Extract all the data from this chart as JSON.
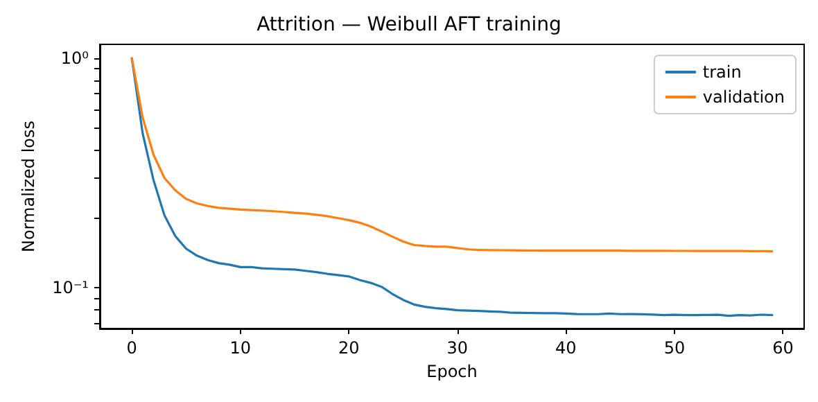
{
  "chart_data": {
    "type": "line",
    "title": "Attrition — Weibull AFT training",
    "xlabel": "Epoch",
    "ylabel": "Normalized loss",
    "x": [
      0,
      1,
      2,
      3,
      4,
      5,
      6,
      7,
      8,
      9,
      10,
      11,
      12,
      13,
      14,
      15,
      16,
      17,
      18,
      19,
      20,
      21,
      22,
      23,
      24,
      25,
      26,
      27,
      28,
      29,
      30,
      31,
      32,
      33,
      34,
      35,
      36,
      37,
      38,
      39,
      40,
      41,
      42,
      43,
      44,
      45,
      46,
      47,
      48,
      49,
      50,
      51,
      52,
      53,
      54,
      55,
      56,
      57,
      58,
      59
    ],
    "series": [
      {
        "name": "train",
        "color": "#1f77b4",
        "values": [
          1.0,
          0.47,
          0.294,
          0.207,
          0.168,
          0.148,
          0.138,
          0.132,
          0.128,
          0.126,
          0.123,
          0.123,
          0.1215,
          0.121,
          0.1205,
          0.12,
          0.1185,
          0.117,
          0.115,
          0.1135,
          0.112,
          0.108,
          0.105,
          0.101,
          0.094,
          0.0885,
          0.0845,
          0.0826,
          0.0815,
          0.0807,
          0.0798,
          0.0795,
          0.0792,
          0.0788,
          0.0785,
          0.0778,
          0.0777,
          0.0776,
          0.0775,
          0.0775,
          0.0772,
          0.0768,
          0.0767,
          0.0767,
          0.0772,
          0.0767,
          0.0768,
          0.0766,
          0.0764,
          0.076,
          0.0762,
          0.076,
          0.076,
          0.0761,
          0.0762,
          0.0755,
          0.076,
          0.0757,
          0.0763,
          0.076
        ]
      },
      {
        "name": "validation",
        "color": "#ff7f0e",
        "values": [
          1.0,
          0.551,
          0.38,
          0.301,
          0.266,
          0.244,
          0.233,
          0.227,
          0.223,
          0.221,
          0.219,
          0.218,
          0.217,
          0.2155,
          0.214,
          0.212,
          0.2105,
          0.208,
          0.205,
          0.201,
          0.197,
          0.192,
          0.185,
          0.176,
          0.167,
          0.159,
          0.1535,
          0.152,
          0.151,
          0.151,
          0.149,
          0.147,
          0.146,
          0.1458,
          0.1457,
          0.1455,
          0.1453,
          0.1452,
          0.145,
          0.145,
          0.145,
          0.145,
          0.145,
          0.145,
          0.145,
          0.145,
          0.1448,
          0.1448,
          0.1448,
          0.1448,
          0.1447,
          0.1447,
          0.1446,
          0.1446,
          0.1445,
          0.1445,
          0.1445,
          0.1444,
          0.1443,
          0.144
        ]
      }
    ],
    "log": "y",
    "xlim": [
      -2.95,
      61.95
    ],
    "ylim": [
      0.0664,
      1.15
    ],
    "xticks": [
      0,
      10,
      20,
      30,
      40,
      50,
      60
    ],
    "yticks": [
      {
        "value": 0.07,
        "label": null
      },
      {
        "value": 0.08,
        "label": null
      },
      {
        "value": 0.09,
        "label": null
      },
      {
        "value": 0.1,
        "label": "10⁻¹"
      },
      {
        "value": 0.2,
        "label": null
      },
      {
        "value": 0.3,
        "label": null
      },
      {
        "value": 0.4,
        "label": null
      },
      {
        "value": 0.5,
        "label": null
      },
      {
        "value": 0.6,
        "label": null
      },
      {
        "value": 0.7,
        "label": null
      },
      {
        "value": 0.8,
        "label": null
      },
      {
        "value": 0.9,
        "label": null
      },
      {
        "value": 1,
        "label": "10⁰"
      }
    ],
    "legend": "top right",
    "grid": false,
    "marker": "none",
    "line_style": "solid"
  }
}
